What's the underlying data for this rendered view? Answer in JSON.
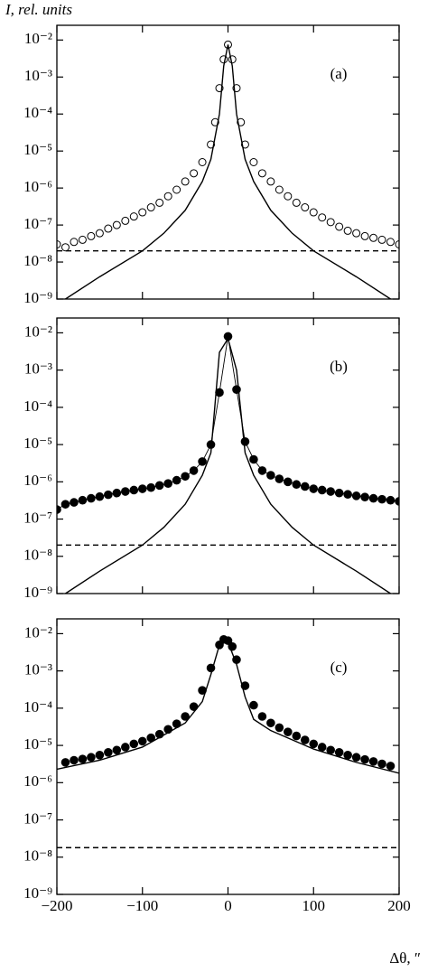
{
  "chart_data": [
    {
      "type": "line",
      "y_label": "I, rel. units",
      "panel_label": "(a)",
      "log_y": true,
      "xlim": [
        -200,
        200
      ],
      "xticks": [
        -200,
        -100,
        0,
        100,
        200
      ],
      "show_xtick_labels": false,
      "ylim": [
        1e-09,
        0.025
      ],
      "yticks": [
        {
          "value": 1e-09,
          "label": "10⁻⁹"
        },
        {
          "value": 1e-08,
          "label": "10⁻⁸"
        },
        {
          "value": 1e-07,
          "label": "10⁻⁷"
        },
        {
          "value": 1e-06,
          "label": "10⁻⁶"
        },
        {
          "value": 1e-05,
          "label": "10⁻⁵"
        },
        {
          "value": 0.0001,
          "label": "10⁻⁴"
        },
        {
          "value": 0.001,
          "label": "10⁻³"
        },
        {
          "value": 0.01,
          "label": "10⁻²"
        }
      ],
      "series": [
        {
          "color": "#000",
          "marker": "open-circle",
          "line": "none",
          "x": [
            -200,
            -190,
            -180,
            -170,
            -160,
            -150,
            -140,
            -130,
            -120,
            -110,
            -100,
            -90,
            -80,
            -70,
            -60,
            -50,
            -40,
            -30,
            -20,
            -15,
            -10,
            -5,
            0,
            5,
            10,
            15,
            20,
            30,
            40,
            50,
            60,
            70,
            80,
            90,
            100,
            110,
            120,
            130,
            140,
            150,
            160,
            170,
            180,
            190,
            200
          ],
          "values": [
            3e-08,
            2.5e-08,
            3.5e-08,
            4e-08,
            5e-08,
            6e-08,
            8e-08,
            1e-07,
            1.3e-07,
            1.7e-07,
            2.2e-07,
            3e-07,
            4e-07,
            6e-07,
            9e-07,
            1.5e-06,
            2.5e-06,
            5e-06,
            1.5e-05,
            6e-05,
            0.0005,
            0.003,
            0.0075,
            0.003,
            0.0005,
            6e-05,
            1.5e-05,
            5e-06,
            2.5e-06,
            1.5e-06,
            9e-07,
            6e-07,
            4e-07,
            3e-07,
            2.2e-07,
            1.6e-07,
            1.2e-07,
            9e-08,
            7e-08,
            6e-08,
            5e-08,
            4.5e-08,
            4e-08,
            3.5e-08,
            3e-08
          ]
        },
        {
          "color": "#000",
          "marker": "none",
          "line": "solid",
          "x": [
            -190,
            -150,
            -100,
            -75,
            -50,
            -30,
            -20,
            -10,
            -5,
            0,
            5,
            10,
            20,
            30,
            50,
            75,
            100,
            150,
            190
          ],
          "values": [
            1e-09,
            4e-09,
            2e-08,
            6e-08,
            2.5e-07,
            1.5e-06,
            6e-06,
            0.0001,
            0.002,
            0.0075,
            0.002,
            0.0001,
            6e-06,
            1.5e-06,
            2.5e-07,
            6e-08,
            2e-08,
            4e-09,
            1e-09
          ]
        },
        {
          "color": "#000",
          "marker": "none",
          "line": "dashed",
          "x": [
            -200,
            200
          ],
          "values": [
            2e-08,
            2e-08
          ]
        }
      ]
    },
    {
      "type": "line",
      "panel_label": "(b)",
      "log_y": true,
      "xlim": [
        -200,
        200
      ],
      "xticks": [
        -200,
        -100,
        0,
        100,
        200
      ],
      "show_xtick_labels": false,
      "ylim": [
        1e-09,
        0.025
      ],
      "yticks": [
        {
          "value": 1e-09,
          "label": "10⁻⁹"
        },
        {
          "value": 1e-08,
          "label": "10⁻⁸"
        },
        {
          "value": 1e-07,
          "label": "10⁻⁷"
        },
        {
          "value": 1e-06,
          "label": "10⁻⁶"
        },
        {
          "value": 1e-05,
          "label": "10⁻⁵"
        },
        {
          "value": 0.0001,
          "label": "10⁻⁴"
        },
        {
          "value": 0.001,
          "label": "10⁻³"
        },
        {
          "value": 0.01,
          "label": "10⁻²"
        }
      ],
      "series": [
        {
          "color": "#000",
          "marker": "filled-circle",
          "line": "thin",
          "x": [
            -200,
            -190,
            -180,
            -170,
            -160,
            -150,
            -140,
            -130,
            -120,
            -110,
            -100,
            -90,
            -80,
            -70,
            -60,
            -50,
            -40,
            -30,
            -20,
            -10,
            0,
            10,
            20,
            30,
            40,
            50,
            60,
            70,
            80,
            90,
            100,
            110,
            120,
            130,
            140,
            150,
            160,
            170,
            180,
            190,
            200
          ],
          "values": [
            1.8e-07,
            2.5e-07,
            2.8e-07,
            3.2e-07,
            3.6e-07,
            4e-07,
            4.5e-07,
            5e-07,
            5.5e-07,
            6e-07,
            6.5e-07,
            7e-07,
            8e-07,
            9e-07,
            1.1e-06,
            1.4e-06,
            2e-06,
            3.5e-06,
            1e-05,
            0.00025,
            0.008,
            0.0003,
            1.2e-05,
            4e-06,
            2e-06,
            1.5e-06,
            1.2e-06,
            1e-06,
            8.5e-07,
            7.5e-07,
            6.5e-07,
            6e-07,
            5.5e-07,
            5e-07,
            4.6e-07,
            4.2e-07,
            3.9e-07,
            3.6e-07,
            3.4e-07,
            3.2e-07,
            3e-07
          ]
        },
        {
          "color": "#000",
          "marker": "none",
          "line": "solid",
          "x": [
            -190,
            -150,
            -100,
            -75,
            -50,
            -30,
            -20,
            -10,
            0,
            10,
            20,
            30,
            50,
            75,
            100,
            150,
            190
          ],
          "values": [
            1e-09,
            4e-09,
            2e-08,
            6e-08,
            2.5e-07,
            1.5e-06,
            6e-06,
            0.003,
            0.007,
            0.001,
            6e-06,
            1.5e-06,
            2.5e-07,
            6e-08,
            2e-08,
            4e-09,
            1e-09
          ]
        },
        {
          "color": "#000",
          "marker": "none",
          "line": "dashed",
          "x": [
            -200,
            200
          ],
          "values": [
            2e-08,
            2e-08
          ]
        }
      ]
    },
    {
      "type": "line",
      "panel_label": "(c)",
      "x_label": "Δθ, ″",
      "log_y": true,
      "xlim": [
        -200,
        200
      ],
      "xticks": [
        {
          "value": -200,
          "label": "−200"
        },
        {
          "value": -100,
          "label": "−100"
        },
        0,
        100,
        200
      ],
      "show_xtick_labels": true,
      "ylim": [
        1e-09,
        0.025
      ],
      "yticks": [
        {
          "value": 1e-09,
          "label": "10⁻⁹"
        },
        {
          "value": 1e-08,
          "label": "10⁻⁸"
        },
        {
          "value": 1e-07,
          "label": "10⁻⁷"
        },
        {
          "value": 1e-06,
          "label": "10⁻⁶"
        },
        {
          "value": 1e-05,
          "label": "10⁻⁵"
        },
        {
          "value": 0.0001,
          "label": "10⁻⁴"
        },
        {
          "value": 0.001,
          "label": "10⁻³"
        },
        {
          "value": 0.01,
          "label": "10⁻²"
        }
      ],
      "series": [
        {
          "color": "#000",
          "marker": "filled-circle",
          "line": "none",
          "x": [
            -190,
            -180,
            -170,
            -160,
            -150,
            -140,
            -130,
            -120,
            -110,
            -100,
            -90,
            -80,
            -70,
            -60,
            -50,
            -40,
            -30,
            -20,
            -10,
            -5,
            0,
            5,
            10,
            20,
            30,
            40,
            50,
            60,
            70,
            80,
            90,
            100,
            110,
            120,
            130,
            140,
            150,
            160,
            170,
            180,
            190
          ],
          "values": [
            3.5e-06,
            4e-06,
            4.3e-06,
            4.8e-06,
            5.5e-06,
            6.5e-06,
            7.5e-06,
            9e-06,
            1.1e-05,
            1.3e-05,
            1.6e-05,
            2e-05,
            2.7e-05,
            3.8e-05,
            6e-05,
            0.00011,
            0.0003,
            0.0012,
            0.005,
            0.007,
            0.0065,
            0.0045,
            0.002,
            0.0004,
            0.00012,
            6e-05,
            4e-05,
            3e-05,
            2.3e-05,
            1.8e-05,
            1.4e-05,
            1.1e-05,
            9e-06,
            7.5e-06,
            6.5e-06,
            5.5e-06,
            4.8e-06,
            4.2e-06,
            3.7e-06,
            3.2e-06,
            2.8e-06
          ]
        },
        {
          "color": "#000",
          "marker": "none",
          "line": "solid",
          "x": [
            -200,
            -150,
            -100,
            -50,
            -30,
            -20,
            -10,
            -5,
            0,
            10,
            20,
            30,
            50,
            100,
            150,
            200
          ],
          "values": [
            2.3e-06,
            4e-06,
            9e-06,
            4e-05,
            0.00015,
            0.0008,
            0.005,
            0.007,
            0.006,
            0.0015,
            0.0002,
            5e-05,
            2.5e-05,
            8e-06,
            3.5e-06,
            1.8e-06
          ]
        },
        {
          "color": "#000",
          "marker": "none",
          "line": "dashed",
          "x": [
            -200,
            200
          ],
          "values": [
            1.8e-08,
            1.8e-08
          ]
        }
      ]
    }
  ]
}
